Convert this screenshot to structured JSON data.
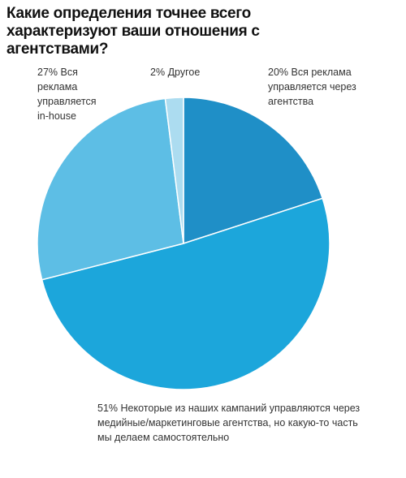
{
  "chart_data": {
    "type": "pie",
    "title": "Какие определения точнее всего характеризуют ваши отношения с агентствами?",
    "categories": [
      "Вся реклама управляется через агентства",
      "Некоторые из наших кампаний управляются через медийные/маркетинговые агентства, но какую-то часть мы делаем самостоятельно",
      "Вся реклама управляется in-house",
      "Другое"
    ],
    "values": [
      20,
      51,
      27,
      2
    ],
    "value_labels": [
      "20%",
      "51%",
      "27%",
      "2%"
    ],
    "colors": [
      "#1f8fc7",
      "#1ca6db",
      "#5dbee5",
      "#acdcf0"
    ]
  }
}
